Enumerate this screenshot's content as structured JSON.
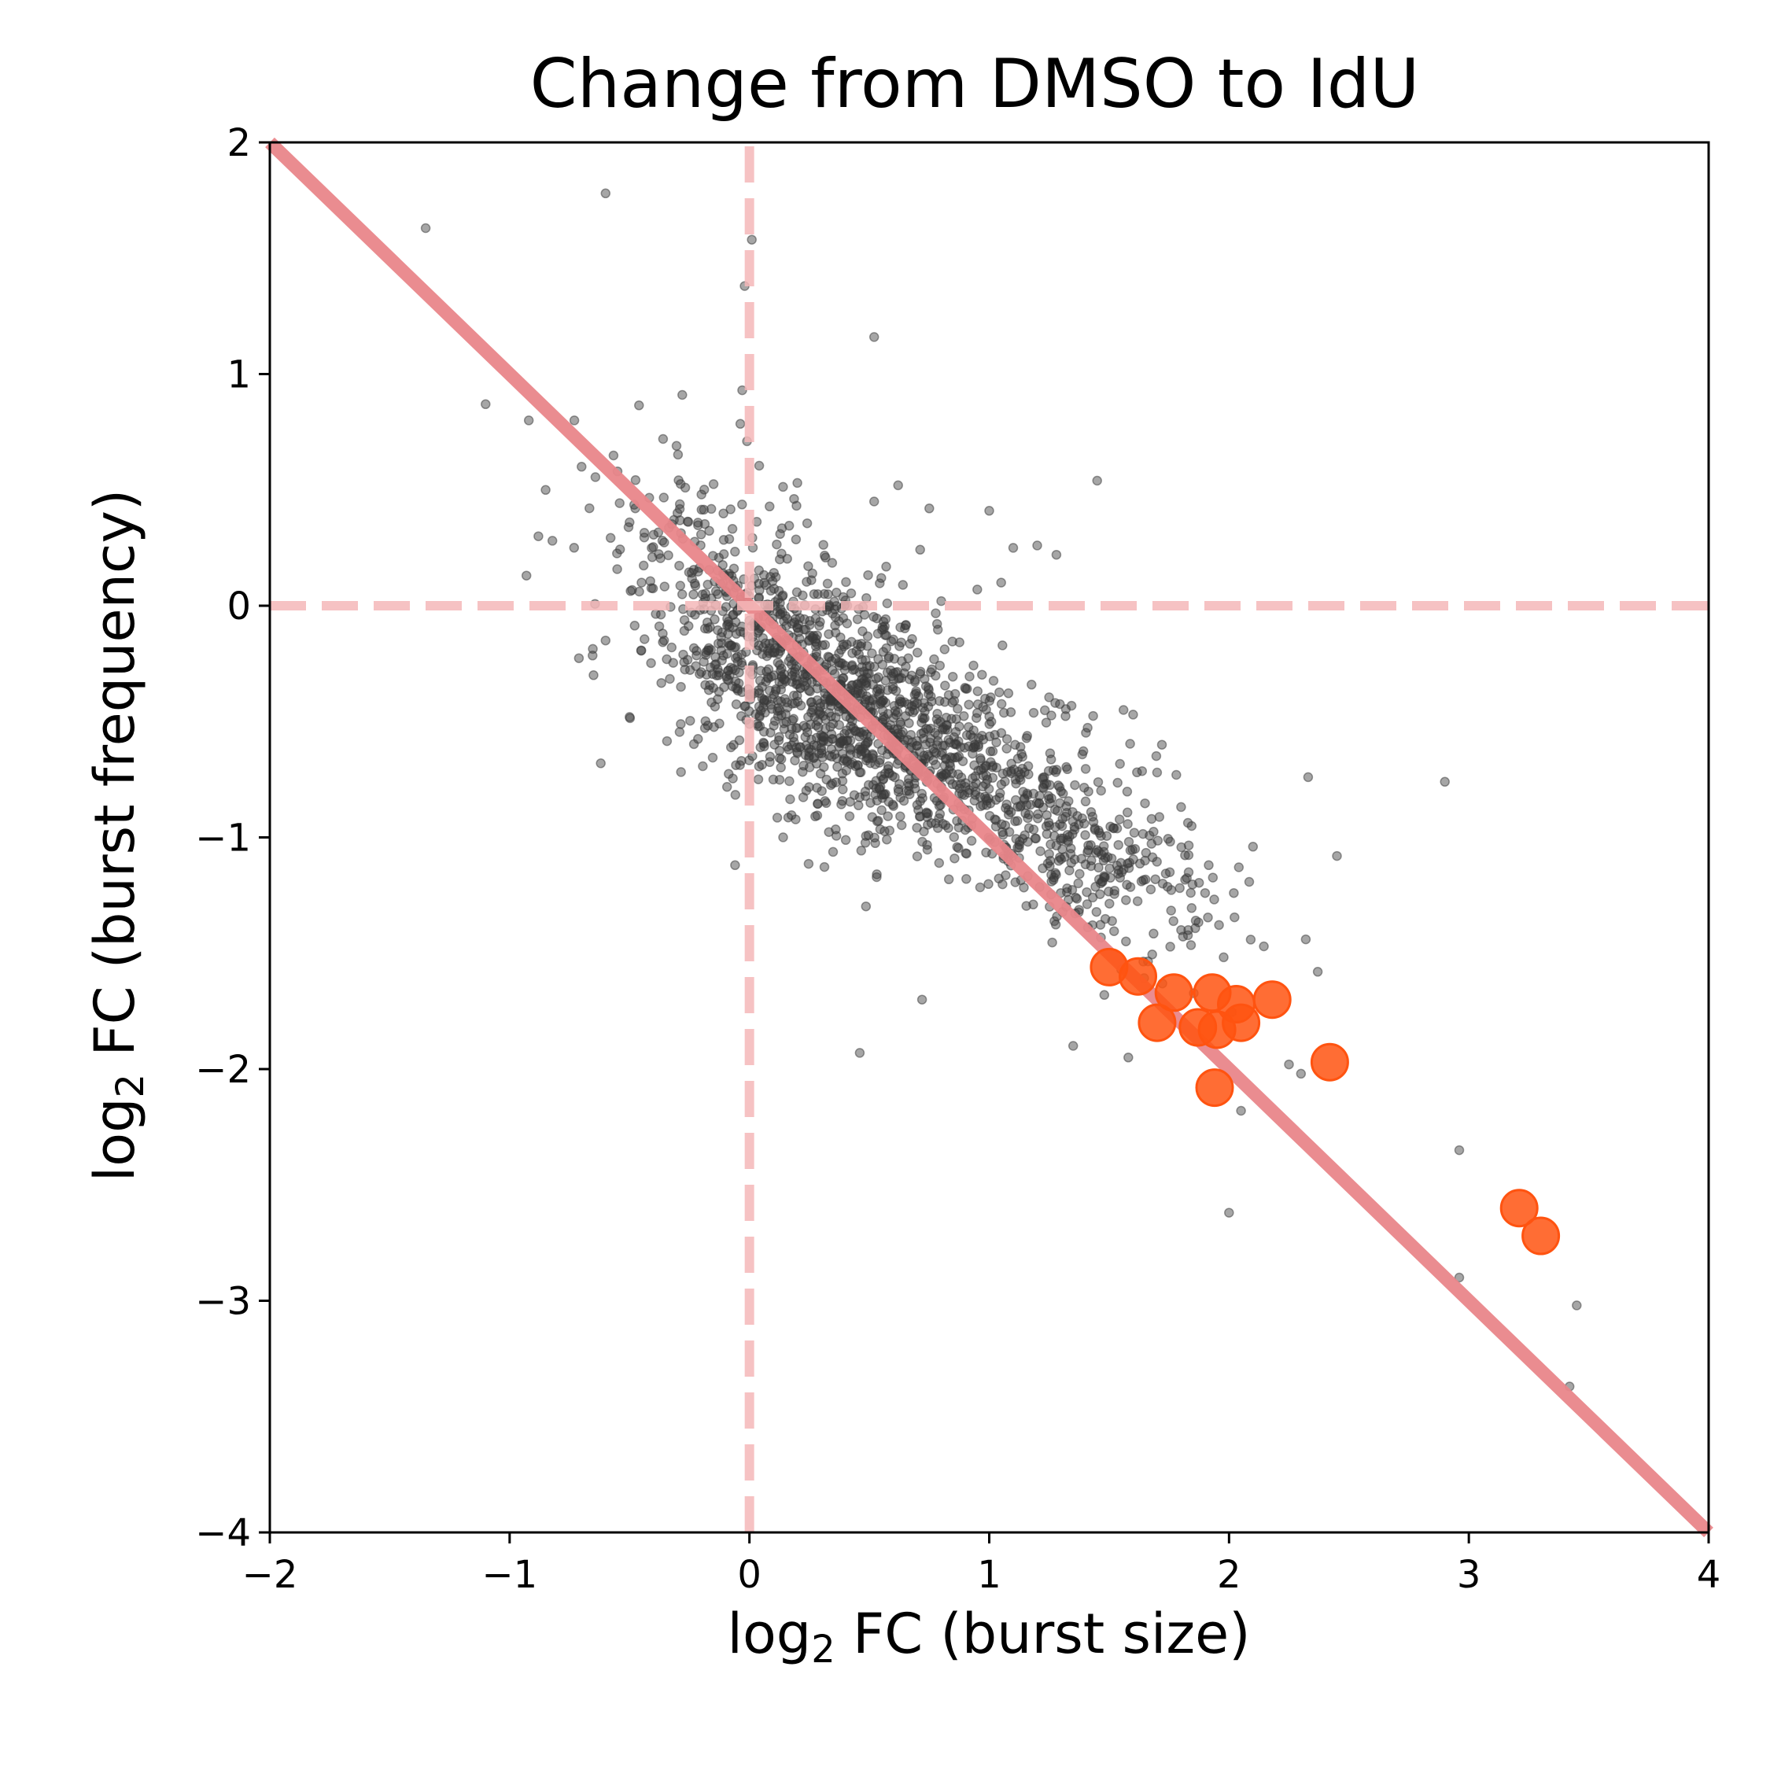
{
  "chart_data": {
    "type": "scatter",
    "title": "Change from DMSO to IdU",
    "xlabel": {
      "prefix": "log",
      "sub": "2",
      "suffix": " FC (burst size)"
    },
    "ylabel": {
      "prefix": "log",
      "sub": "2",
      "suffix": " FC (burst frequency)"
    },
    "xlim": [
      -2,
      4
    ],
    "ylim": [
      -4,
      2
    ],
    "xticks": [
      -2,
      -1,
      0,
      1,
      2,
      3,
      4
    ],
    "yticks": [
      -4,
      -3,
      -2,
      -1,
      0,
      1,
      2
    ],
    "xtick_labels": [
      "−2",
      "−1",
      "0",
      "1",
      "2",
      "3",
      "4"
    ],
    "ytick_labels": [
      "−4",
      "−3",
      "−2",
      "−1",
      "0",
      "1",
      "2"
    ],
    "grid": false,
    "reference_lines": [
      {
        "type": "diagonal",
        "slope": -1,
        "intercept": 0,
        "style": "solid",
        "color": "#e9868a"
      },
      {
        "type": "vertical",
        "x": 0,
        "style": "dashed",
        "color": "#f4b7b9"
      },
      {
        "type": "horizontal",
        "y": 0,
        "style": "dashed",
        "color": "#f4b7b9"
      }
    ],
    "colors": {
      "background_points": "#3a3a3a",
      "highlight_points": "#ff5310"
    },
    "series": [
      {
        "role": "background",
        "points": [
          [
            -1.35,
            1.63
          ],
          [
            -0.6,
            1.78
          ],
          [
            0.01,
            1.58
          ],
          [
            -0.02,
            1.38
          ],
          [
            0.52,
            1.16
          ],
          [
            -1.1,
            0.87
          ],
          [
            -0.92,
            0.8
          ],
          [
            -0.73,
            0.8
          ],
          [
            -0.28,
            0.91
          ],
          [
            -0.03,
            0.93
          ],
          [
            -0.36,
            0.72
          ],
          [
            -0.01,
            0.71
          ],
          [
            -0.7,
            0.6
          ],
          [
            -0.85,
            0.5
          ],
          [
            -0.55,
            0.58
          ],
          [
            -0.2,
            0.48
          ],
          [
            0.2,
            0.53
          ],
          [
            0.75,
            0.42
          ],
          [
            1.0,
            0.41
          ],
          [
            1.45,
            0.54
          ],
          [
            0.52,
            0.45
          ],
          [
            0.62,
            0.52
          ],
          [
            -0.88,
            0.3
          ],
          [
            -0.5,
            0.36
          ],
          [
            -0.3,
            0.4
          ],
          [
            1.2,
            0.26
          ],
          [
            1.1,
            0.25
          ],
          [
            1.28,
            0.22
          ],
          [
            0.95,
            0.07
          ],
          [
            -0.93,
            0.13
          ],
          [
            0.64,
            0.09
          ],
          [
            0.55,
            0.12
          ],
          [
            0.8,
            0.02
          ],
          [
            1.05,
            0.1
          ],
          [
            -0.45,
            0.1
          ],
          [
            -0.6,
            -0.15
          ],
          [
            -0.65,
            -0.3
          ],
          [
            -0.5,
            -0.48
          ],
          [
            -0.62,
            -0.68
          ],
          [
            -0.06,
            -1.12
          ],
          [
            0.46,
            -1.93
          ],
          [
            0.72,
            -1.7
          ],
          [
            1.35,
            -1.9
          ],
          [
            1.58,
            -1.95
          ],
          [
            1.55,
            -1.57
          ],
          [
            1.48,
            -1.68
          ],
          [
            2.1,
            -1.04
          ],
          [
            2.45,
            -1.08
          ],
          [
            2.33,
            -0.74
          ],
          [
            2.9,
            -0.76
          ],
          [
            2.32,
            -1.44
          ],
          [
            2.37,
            -1.58
          ],
          [
            2.25,
            -1.98
          ],
          [
            2.3,
            -2.02
          ],
          [
            2.05,
            -2.18
          ],
          [
            2.0,
            -2.62
          ],
          [
            2.96,
            -2.35
          ],
          [
            2.96,
            -2.9
          ],
          [
            3.45,
            -3.02
          ],
          [
            3.42,
            -3.37
          ],
          [
            1.6,
            -0.47
          ],
          [
            1.56,
            -0.45
          ],
          [
            1.72,
            -0.6
          ],
          [
            1.7,
            -0.72
          ],
          [
            1.78,
            -0.73
          ],
          [
            1.9,
            -1.24
          ],
          [
            2.02,
            -1.24
          ],
          [
            1.8,
            -1.4
          ],
          [
            1.83,
            -1.4
          ]
        ],
        "clouds": [
          {
            "cx": 0.55,
            "cy": -0.55,
            "sdx": 0.42,
            "sdy": 0.28,
            "n": 1150,
            "seed": 7
          },
          {
            "cx": 0.05,
            "cy": -0.05,
            "sdx": 0.3,
            "sdy": 0.28,
            "n": 420,
            "seed": 13
          },
          {
            "cx": 1.35,
            "cy": -1.05,
            "sdx": 0.28,
            "sdy": 0.2,
            "n": 280,
            "seed": 29
          }
        ]
      },
      {
        "role": "highlight",
        "points": [
          [
            1.5,
            -1.56
          ],
          [
            1.62,
            -1.6
          ],
          [
            1.7,
            -1.8
          ],
          [
            1.77,
            -1.67
          ],
          [
            1.87,
            -1.82
          ],
          [
            1.93,
            -1.67
          ],
          [
            1.95,
            -1.83
          ],
          [
            1.94,
            -2.08
          ],
          [
            2.03,
            -1.72
          ],
          [
            2.05,
            -1.8
          ],
          [
            2.18,
            -1.7
          ],
          [
            2.42,
            -1.97
          ],
          [
            3.21,
            -2.6
          ],
          [
            3.3,
            -2.72
          ]
        ]
      }
    ]
  }
}
